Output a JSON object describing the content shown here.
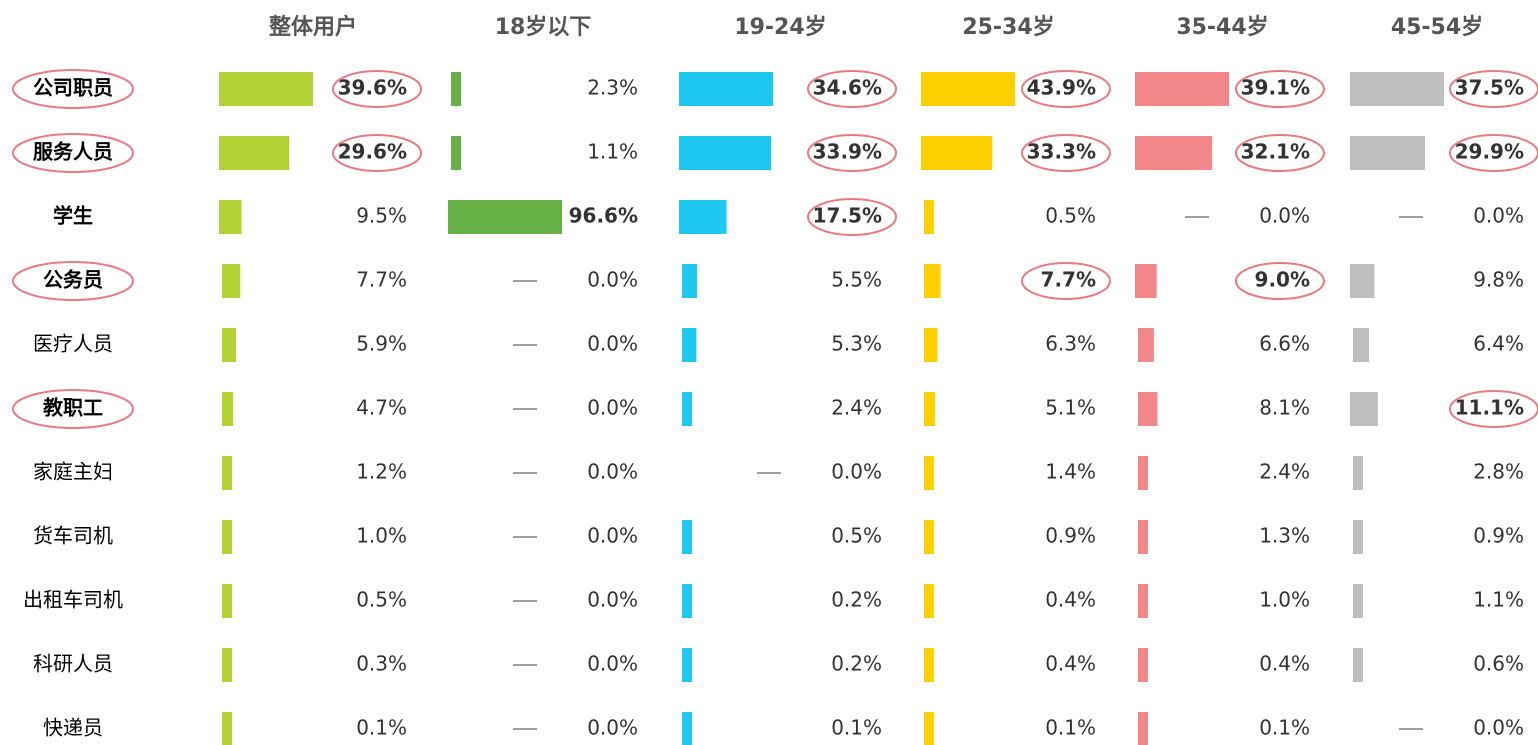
{
  "chart_data": {
    "type": "bar-table",
    "categories": [
      "公司职员",
      "服务人员",
      "学生",
      "公务员",
      "医疗人员",
      "教职工",
      "家庭主妇",
      "货车司机",
      "出租车司机",
      "科研人员",
      "快递员"
    ],
    "bold_rows": [
      0,
      1,
      2,
      3,
      5
    ],
    "circled_rows": [
      0,
      1,
      3,
      5
    ],
    "series": [
      {
        "name": "整体用户",
        "color": "#b5d334",
        "values": [
          39.6,
          29.6,
          9.5,
          7.7,
          5.9,
          4.7,
          1.2,
          1.0,
          0.5,
          0.3,
          0.1
        ],
        "value_labels": [
          "39.6%",
          "29.6%",
          "9.5%",
          "7.7%",
          "5.9%",
          "4.7%",
          "1.2%",
          "1.0%",
          "0.5%",
          "0.3%",
          "0.1%"
        ],
        "bold": [
          0,
          1
        ],
        "circled": [
          0,
          1
        ]
      },
      {
        "name": "18岁以下",
        "color": "#66b045",
        "values": [
          2.3,
          1.1,
          96.6,
          0.0,
          0.0,
          0.0,
          0.0,
          0.0,
          0.0,
          0.0,
          0.0
        ],
        "value_labels": [
          "2.3%",
          "1.1%",
          "96.6%",
          "0.0%",
          "0.0%",
          "0.0%",
          "0.0%",
          "0.0%",
          "0.0%",
          "0.0%",
          "0.0%"
        ],
        "bold": [
          2
        ],
        "circled": []
      },
      {
        "name": "19-24岁",
        "color": "#1ec8f0",
        "values": [
          34.6,
          33.9,
          17.5,
          5.5,
          5.3,
          2.4,
          0.0,
          0.5,
          0.2,
          0.2,
          0.1
        ],
        "value_labels": [
          "34.6%",
          "33.9%",
          "17.5%",
          "5.5%",
          "5.3%",
          "2.4%",
          "0.0%",
          "0.5%",
          "0.2%",
          "0.2%",
          "0.1%"
        ],
        "bold": [
          0,
          1,
          2
        ],
        "circled": [
          0,
          1,
          2
        ]
      },
      {
        "name": "25-34岁",
        "color": "#ffd000",
        "values": [
          43.9,
          33.3,
          0.5,
          7.7,
          6.3,
          5.1,
          1.4,
          0.9,
          0.4,
          0.4,
          0.1
        ],
        "value_labels": [
          "43.9%",
          "33.3%",
          "0.5%",
          "7.7%",
          "6.3%",
          "5.1%",
          "1.4%",
          "0.9%",
          "0.4%",
          "0.4%",
          "0.1%"
        ],
        "bold": [
          0,
          1,
          3
        ],
        "circled": [
          0,
          1,
          3
        ]
      },
      {
        "name": "35-44岁",
        "color": "#f28789",
        "values": [
          39.1,
          32.1,
          0.0,
          9.0,
          6.6,
          8.1,
          2.4,
          1.3,
          1.0,
          0.4,
          0.1
        ],
        "value_labels": [
          "39.1%",
          "32.1%",
          "0.0%",
          "9.0%",
          "6.6%",
          "8.1%",
          "2.4%",
          "1.3%",
          "1.0%",
          "0.4%",
          "0.1%"
        ],
        "bold": [
          0,
          1,
          3
        ],
        "circled": [
          0,
          1,
          3
        ]
      },
      {
        "name": "45-54岁",
        "color": "#bfbfbf",
        "values": [
          37.5,
          29.9,
          0.0,
          9.8,
          6.4,
          11.1,
          2.8,
          0.9,
          1.1,
          0.6,
          0.0
        ],
        "value_labels": [
          "37.5%",
          "29.9%",
          "0.0%",
          "9.8%",
          "6.4%",
          "11.1%",
          "2.8%",
          "0.9%",
          "1.1%",
          "0.6%",
          "0.0%"
        ],
        "bold": [
          0,
          1,
          5
        ],
        "circled": [
          0,
          1,
          5
        ]
      }
    ]
  }
}
